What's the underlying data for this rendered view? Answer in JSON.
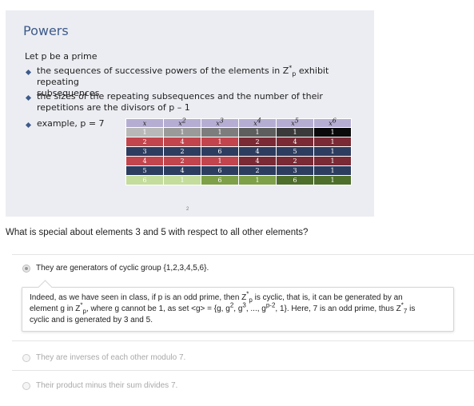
{
  "slide": {
    "title": "Powers",
    "intro": "Let p be a prime",
    "bullet1_a": "the sequences of successive powers of the elements in Z",
    "bullet1_sup": "*",
    "bullet1_sub": "p",
    "bullet1_b": " exhibit repeating",
    "bullet1_line2": "subsequences",
    "bullet2_line1": "the sizes of the repeating subsequences and the number of their",
    "bullet2_line2": "repetitions are the divisors of p – 1",
    "bullet3": "example, p = 7",
    "page_number": "2",
    "table": {
      "headers": [
        {
          "base": "x",
          "exp": ""
        },
        {
          "base": "x",
          "exp": "2"
        },
        {
          "base": "x",
          "exp": "3"
        },
        {
          "base": "x",
          "exp": "4"
        },
        {
          "base": "x",
          "exp": "5"
        },
        {
          "base": "x",
          "exp": "6"
        }
      ],
      "rows": [
        {
          "cells": [
            "1",
            "1",
            "1",
            "1",
            "1",
            "1"
          ],
          "colors": [
            "#b8b8b8",
            "#9a9a9a",
            "#7d7d7d",
            "#5e5e5e",
            "#3a3a3a",
            "#0a0a0a"
          ]
        },
        {
          "cells": [
            "2",
            "4",
            "1",
            "2",
            "4",
            "1"
          ],
          "colors": [
            "#c2444c",
            "#c2444c",
            "#c2444c",
            "#7a2a35",
            "#7a2a35",
            "#7a2a35"
          ]
        },
        {
          "cells": [
            "3",
            "2",
            "6",
            "4",
            "5",
            "1"
          ],
          "colors": [
            "#2c3d60",
            "#2c3d60",
            "#2c3d60",
            "#2c3d60",
            "#2c3d60",
            "#2c3d60"
          ]
        },
        {
          "cells": [
            "4",
            "2",
            "1",
            "4",
            "2",
            "1"
          ],
          "colors": [
            "#c2444c",
            "#c2444c",
            "#c2444c",
            "#7a2a35",
            "#7a2a35",
            "#7a2a35"
          ]
        },
        {
          "cells": [
            "5",
            "4",
            "6",
            "2",
            "3",
            "1"
          ],
          "colors": [
            "#2c3d60",
            "#2c3d60",
            "#2c3d60",
            "#2c3d60",
            "#2c3d60",
            "#2c3d60"
          ]
        },
        {
          "cells": [
            "6",
            "1",
            "6",
            "1",
            "6",
            "1"
          ],
          "colors": [
            "#c4dc9c",
            "#c4dc9c",
            "#7ea048",
            "#7ea048",
            "#4e6e2c",
            "#4e6e2c"
          ]
        }
      ]
    }
  },
  "question": "What is special about elements 3 and 5 with respect to all other elements?",
  "options": [
    {
      "label": "They are generators of cyclic group {1,2,3,4,5,6}.",
      "selected": true
    },
    {
      "label": "They are inverses of each other modulo 7.",
      "selected": false
    },
    {
      "label": "Their product minus their sum divides 7.",
      "selected": false
    }
  ],
  "feedback": {
    "line1_a": "Indeed, as we have seen in class, if p is an odd prime, then Z",
    "line1_sup": "*",
    "line1_sub": "p",
    "line1_b": " is cyclic, that is, it can be generated by an",
    "line2_a": "element g in Z",
    "line2_sup": "*",
    "line2_sub": "p",
    "line2_b": ", where g cannot be 1, as set <g> = {g, g",
    "line2_sup2": "2",
    "line2_c": ", g",
    "line2_sup3": "3",
    "line2_d": ", ..., g",
    "line2_sup4": "p-2",
    "line2_e": ", 1}. Here, 7 is an odd prime, thus Z",
    "line2_sup5": "*",
    "line2_sub5": "7",
    "line2_f": " is",
    "line3": "cyclic and is generated by 3 and 5."
  }
}
